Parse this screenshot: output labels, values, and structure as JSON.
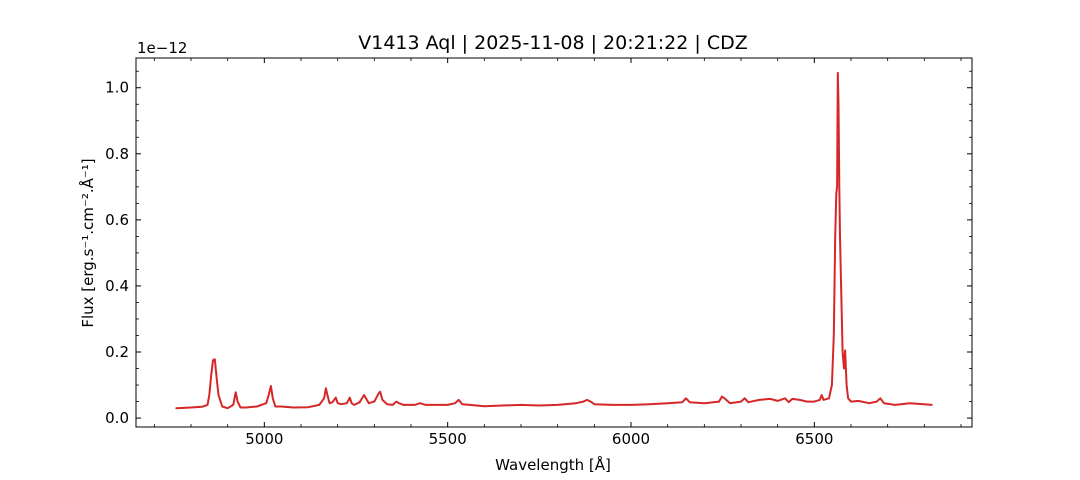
{
  "chart_data": {
    "type": "line",
    "title": "V1413 Aql | 2025-11-08 | 20:21:22 | CDZ",
    "xlabel": "Wavelength [Å]",
    "ylabel": "Flux [erg.s⁻¹.cm⁻².Å⁻¹]",
    "y_offset_label": "1e−12",
    "xlim": [
      4650,
      6930
    ],
    "ylim": [
      -0.027,
      1.09
    ],
    "x_ticks": [
      5000,
      5500,
      6000,
      6500
    ],
    "x_tick_labels": [
      "5000",
      "5500",
      "6000",
      "6500"
    ],
    "y_ticks": [
      0.0,
      0.2,
      0.4,
      0.6,
      0.8,
      1.0
    ],
    "y_tick_labels": [
      "0.0",
      "0.2",
      "0.4",
      "0.6",
      "0.8",
      "1.0"
    ],
    "grid": false,
    "line_color": "#d62728",
    "series": [
      {
        "x": [
          4760,
          4800,
          4830,
          4845,
          4850,
          4855,
          4860,
          4865,
          4870,
          4875,
          4885,
          4900,
          4915,
          4922,
          4927,
          4935,
          4950,
          4980,
          5005,
          5012,
          5018,
          5023,
          5030,
          5045,
          5080,
          5120,
          5150,
          5163,
          5168,
          5172,
          5178,
          5186,
          5195,
          5200,
          5210,
          5225,
          5233,
          5238,
          5245,
          5260,
          5272,
          5278,
          5285,
          5300,
          5312,
          5316,
          5322,
          5335,
          5350,
          5360,
          5367,
          5380,
          5410,
          5425,
          5440,
          5470,
          5500,
          5520,
          5530,
          5540,
          5560,
          5600,
          5650,
          5700,
          5750,
          5800,
          5850,
          5870,
          5880,
          5890,
          5900,
          5950,
          6000,
          6050,
          6100,
          6140,
          6150,
          6160,
          6200,
          6240,
          6248,
          6255,
          6270,
          6300,
          6310,
          6320,
          6350,
          6380,
          6400,
          6420,
          6430,
          6440,
          6460,
          6480,
          6500,
          6515,
          6520,
          6525,
          6540,
          6548,
          6553,
          6557,
          6560,
          6562,
          6564,
          6566,
          6568,
          6570,
          6573,
          6577,
          6581,
          6584,
          6588,
          6592,
          6600,
          6620,
          6650,
          6670,
          6680,
          6690,
          6720,
          6760,
          6800,
          6820
        ],
        "y": [
          0.03,
          0.032,
          0.034,
          0.04,
          0.07,
          0.13,
          0.175,
          0.178,
          0.12,
          0.07,
          0.035,
          0.03,
          0.04,
          0.078,
          0.05,
          0.032,
          0.032,
          0.035,
          0.045,
          0.07,
          0.097,
          0.06,
          0.035,
          0.035,
          0.032,
          0.033,
          0.04,
          0.06,
          0.09,
          0.07,
          0.045,
          0.048,
          0.062,
          0.045,
          0.042,
          0.045,
          0.062,
          0.045,
          0.04,
          0.048,
          0.07,
          0.058,
          0.045,
          0.05,
          0.075,
          0.08,
          0.055,
          0.042,
          0.04,
          0.05,
          0.045,
          0.04,
          0.04,
          0.045,
          0.04,
          0.04,
          0.04,
          0.045,
          0.055,
          0.042,
          0.04,
          0.036,
          0.038,
          0.04,
          0.038,
          0.04,
          0.045,
          0.05,
          0.055,
          0.05,
          0.042,
          0.04,
          0.04,
          0.042,
          0.045,
          0.048,
          0.06,
          0.048,
          0.045,
          0.05,
          0.065,
          0.06,
          0.045,
          0.05,
          0.06,
          0.048,
          0.055,
          0.058,
          0.052,
          0.06,
          0.048,
          0.058,
          0.055,
          0.05,
          0.05,
          0.055,
          0.07,
          0.055,
          0.06,
          0.1,
          0.25,
          0.55,
          0.68,
          0.7,
          1.045,
          0.95,
          0.7,
          0.55,
          0.4,
          0.2,
          0.15,
          0.205,
          0.1,
          0.06,
          0.05,
          0.052,
          0.045,
          0.05,
          0.06,
          0.045,
          0.04,
          0.045,
          0.042,
          0.04
        ]
      }
    ]
  }
}
